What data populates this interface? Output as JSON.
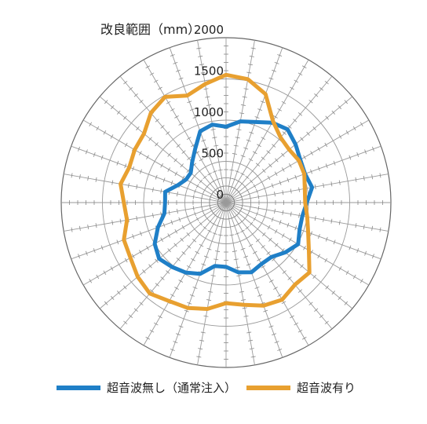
{
  "chart_data": {
    "type": "radar",
    "radial_axis": {
      "label": "改良範囲（mm）",
      "range": [
        0,
        2000
      ],
      "ticks": [
        0,
        500,
        1000,
        1500,
        2000
      ],
      "tick_labels": [
        "0",
        "500",
        "1000",
        "1500",
        "2000"
      ]
    },
    "angles_deg": [
      0,
      10,
      20,
      30,
      40,
      50,
      60,
      70,
      80,
      90,
      100,
      110,
      120,
      130,
      140,
      150,
      160,
      170,
      180,
      190,
      200,
      210,
      220,
      230,
      240,
      250,
      260,
      270,
      280,
      290,
      300,
      310,
      320,
      330,
      340,
      350
    ],
    "series": [
      {
        "name": "超音波無し（通常注入）",
        "color": "#1f7fc7",
        "values": [
          920,
          1000,
          1040,
          1120,
          1160,
          1100,
          1040,
          1020,
          1060,
          980,
          940,
          950,
          1010,
          940,
          860,
          860,
          900,
          860,
          780,
          780,
          920,
          980,
          1020,
          1060,
          1000,
          880,
          760,
          740,
          750,
          620,
          560,
          560,
          640,
          750,
          920,
          960
        ]
      },
      {
        "name": "超音波有り",
        "color": "#e8a030",
        "values": [
          1550,
          1520,
          1400,
          1140,
          1030,
          1000,
          1020,
          1010,
          970,
          960,
          1000,
          1060,
          1160,
          1320,
          1300,
          1360,
          1330,
          1260,
          1220,
          1310,
          1360,
          1380,
          1440,
          1400,
          1340,
          1320,
          1220,
          1240,
          1300,
          1250,
          1280,
          1300,
          1420,
          1480,
          1380,
          1460
        ]
      }
    ],
    "legend_position": "bottom",
    "grid": true
  }
}
